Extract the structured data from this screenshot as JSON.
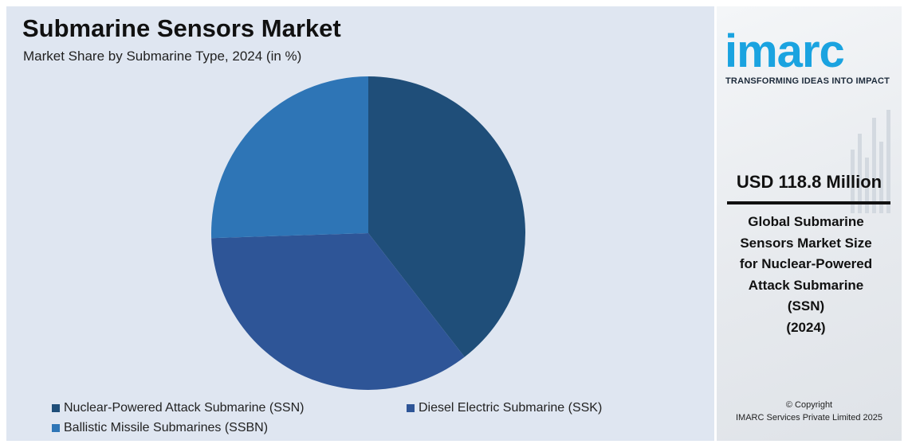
{
  "header": {
    "title": "Submarine Sensors Market",
    "subtitle": "Market Share by Submarine Type, 2024 (in %)"
  },
  "chart_data": {
    "type": "pie",
    "title": "Submarine Sensors Market",
    "subtitle": "Market Share by Submarine Type, 2024 (in %)",
    "start_angle_deg": 0,
    "direction": "clockwise",
    "legend_position": "bottom",
    "slices": [
      {
        "label": "Nuclear-Powered Attack Submarine (SSN)",
        "value": 39.5,
        "color": "#1f4e79"
      },
      {
        "label": "Diesel Electric Submarine (SSK)",
        "value": 35.0,
        "color": "#2e5597"
      },
      {
        "label": "Ballistic Missile Submarines (SSBN)",
        "value": 25.5,
        "color": "#2e75b6"
      }
    ]
  },
  "sidebar": {
    "logo_text": "imarc",
    "logo_color": "#1aa3e0",
    "tagline": "TRANSFORMING IDEAS INTO IMPACT",
    "value": "USD 118.8 Million",
    "caption_lines": [
      "Global Submarine",
      "Sensors Market Size",
      "for Nuclear-Powered",
      "Attack Submarine",
      "(SSN)",
      "(2024)"
    ],
    "copyright_line1": "© Copyright",
    "copyright_line2": "IMARC Services Private Limited 2025"
  }
}
